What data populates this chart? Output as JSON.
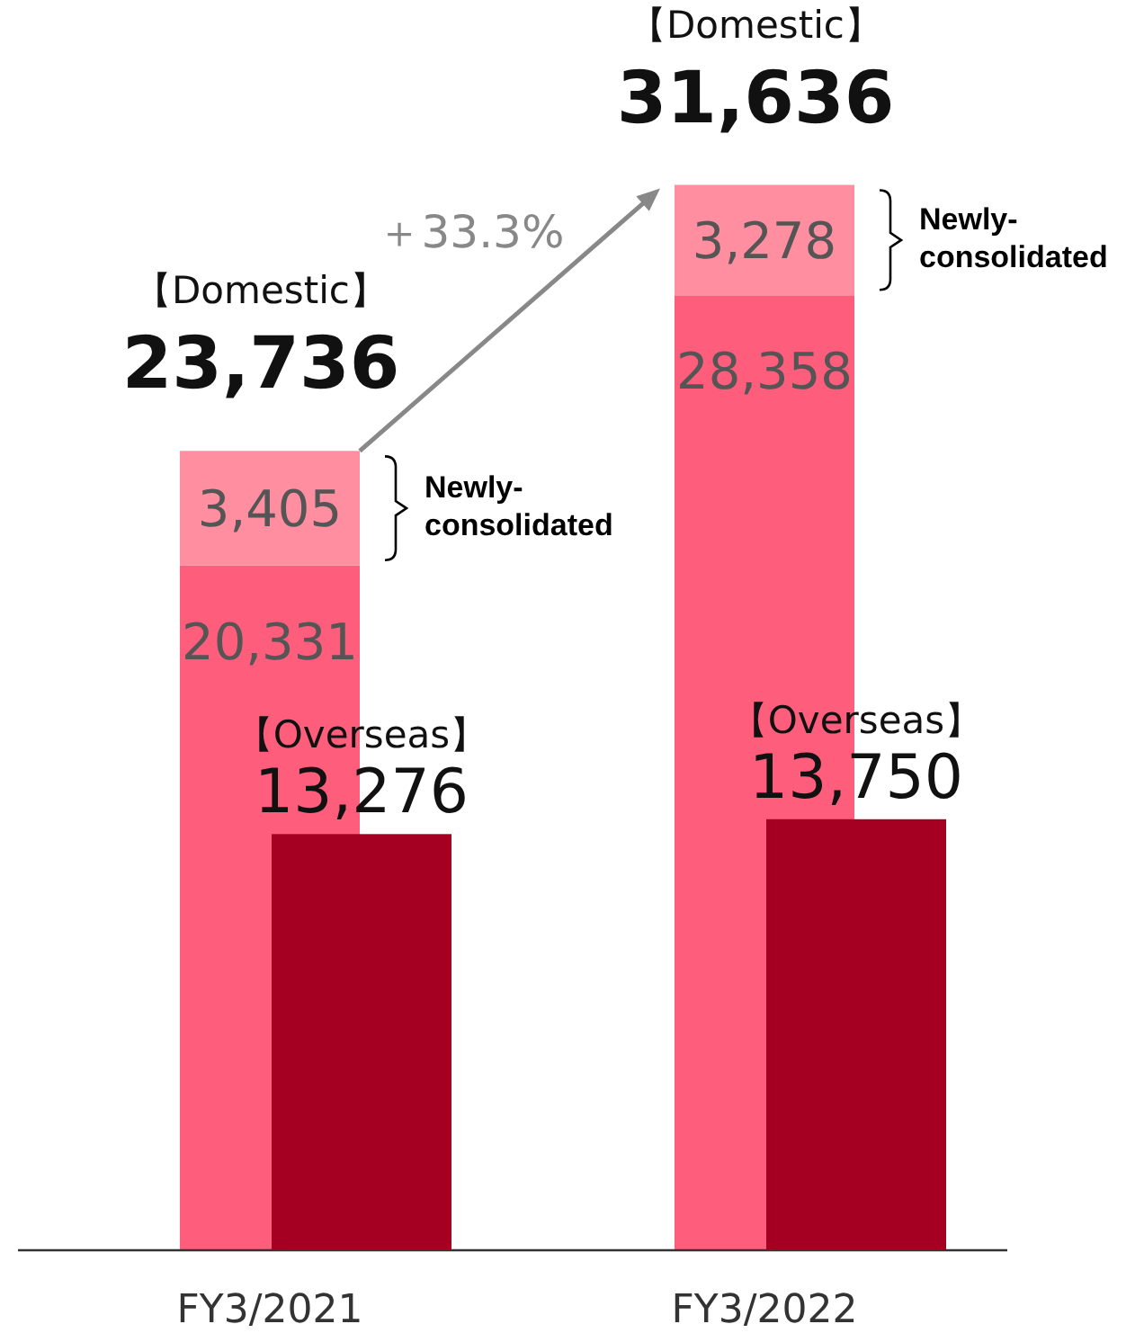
{
  "chart_data": [
    {
      "type": "bar",
      "stacked": true,
      "categories": [
        "FY3/2021",
        "FY3/2022"
      ],
      "series": [
        {
          "color": "#fe5e7c",
          "values": [
            20331,
            28358
          ],
          "value_labels": [
            "20,331",
            "28,358"
          ]
        },
        {
          "name": "Newly-consolidated",
          "color": "#ff8ea0",
          "values": [
            3405,
            3278
          ],
          "value_labels": [
            "3,405",
            "3,278"
          ]
        }
      ],
      "totals": [
        "23,736",
        "31,636"
      ],
      "annotations": [
        "【Domestic】",
        "【Domestic】",
        "＋33.3%"
      ]
    },
    {
      "type": "bar",
      "categories": [
        "FY3/2021",
        "FY3/2022"
      ],
      "tick_labels": false,
      "series": [
        {
          "name": "【Overseas】",
          "color": "#a50021",
          "values": [
            13276,
            13750
          ],
          "value_labels": [
            "13,276",
            "13,750"
          ]
        }
      ]
    }
  ]
}
